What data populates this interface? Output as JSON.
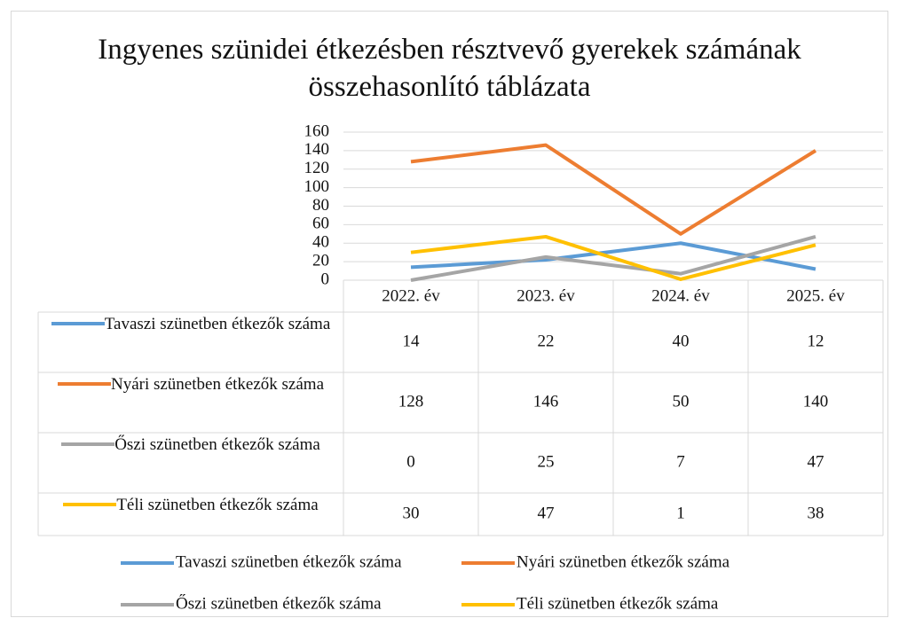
{
  "chart_data": {
    "type": "line",
    "title": "Ingyenes szünidei étkezésben résztvevő gyerekek számának összehasonlító táblázata",
    "categories": [
      "2022. év",
      "2023. év",
      "2024. év",
      "2025. év"
    ],
    "series": [
      {
        "name": "Tavaszi szünetben étkezők száma",
        "color": "#5b9bd5",
        "values": [
          14,
          22,
          40,
          12
        ]
      },
      {
        "name": "Nyári szünetben étkezők száma",
        "color": "#ed7d31",
        "values": [
          128,
          146,
          50,
          140
        ]
      },
      {
        "name": "Őszi szünetben étkezők száma",
        "color": "#a5a5a5",
        "values": [
          0,
          25,
          7,
          47
        ]
      },
      {
        "name": "Téli szünetben étkezők száma",
        "color": "#ffc000",
        "values": [
          30,
          47,
          1,
          38
        ]
      }
    ],
    "ylim": [
      0,
      160
    ],
    "yticks": [
      0,
      20,
      40,
      60,
      80,
      100,
      120,
      140,
      160
    ],
    "grid": true,
    "legend": "bottom",
    "data_table": true
  }
}
